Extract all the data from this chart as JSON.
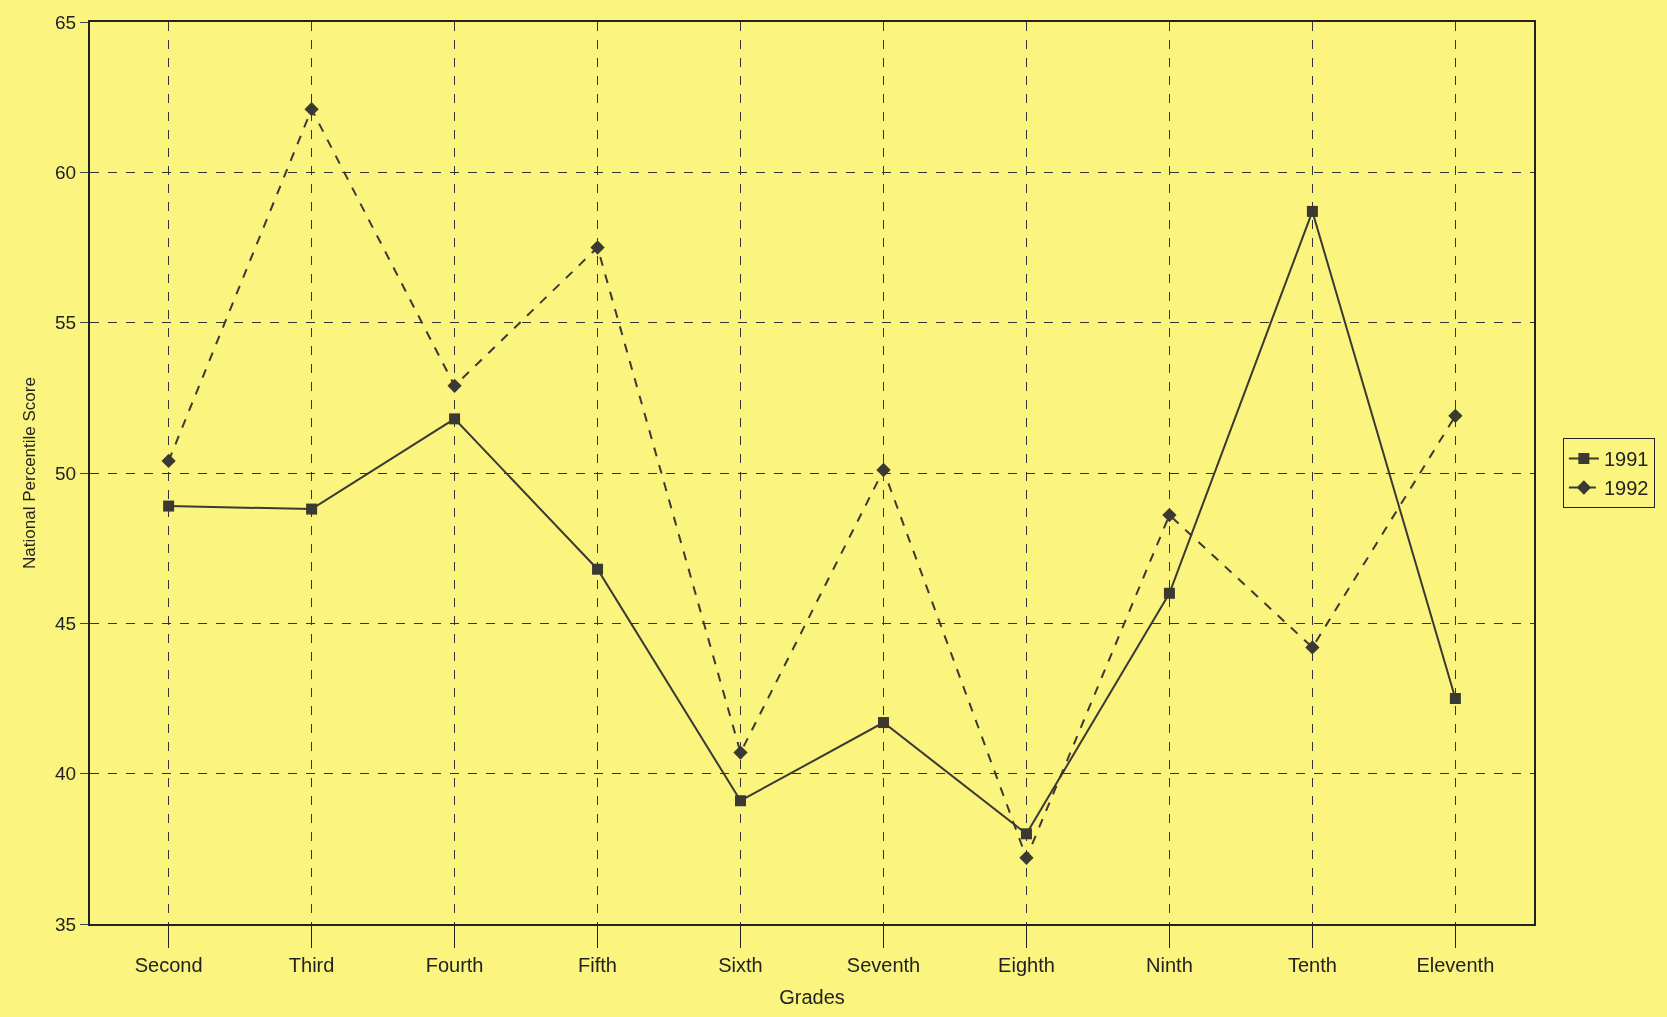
{
  "chart_data": {
    "type": "line",
    "xlabel": "Grades",
    "ylabel": "National Percentile Score",
    "categories": [
      "Second",
      "Third",
      "Fourth",
      "Fifth",
      "Sixth",
      "Seventh",
      "Eighth",
      "Ninth",
      "Tenth",
      "Eleventh"
    ],
    "series": [
      {
        "name": "1991",
        "color": "#3a3a32",
        "marker": "square",
        "line_style": "solid",
        "values": [
          48.9,
          48.8,
          51.8,
          46.8,
          39.1,
          41.7,
          38.0,
          46.0,
          58.7,
          42.5
        ]
      },
      {
        "name": "1992",
        "color": "#3a3a32",
        "marker": "diamond",
        "line_style": "dashed",
        "values": [
          50.4,
          62.1,
          52.9,
          57.5,
          40.7,
          50.1,
          37.2,
          48.6,
          44.2,
          51.9
        ]
      }
    ],
    "ylim": [
      35,
      65
    ],
    "yticks": [
      35,
      40,
      45,
      50,
      55,
      60,
      65
    ],
    "grid": true,
    "legend": "right"
  }
}
